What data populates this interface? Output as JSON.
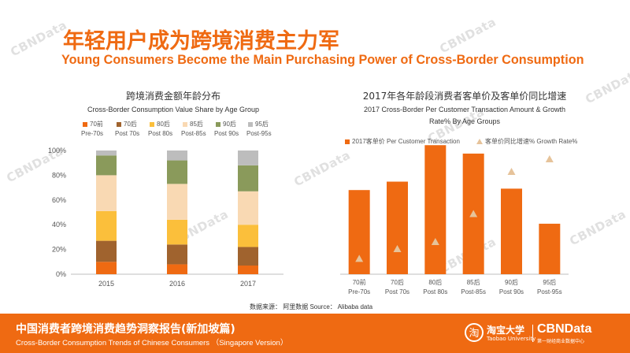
{
  "header": {
    "title_cn": "年轻用户成为跨境消费主力军",
    "title_en": "Young Consumers Become the Main Purchasing Power of Cross-Border Consumption"
  },
  "watermark": "CBNData",
  "source": "数据来源： 阿里数据  Source： Alibaba data",
  "footer": {
    "title_cn": "中国消费者跨境消费趋势洞察报告(新加坡篇)",
    "title_en": "Cross-Border Consumption Trends of Chinese Consumers （Singapore Version）",
    "logo_taobao": "淘宝大学",
    "logo_taobao_en": "Taobao University",
    "logo_cbn": "CBNData",
    "logo_cbn_sub": "第一财经商业数据中心"
  },
  "chart_data": [
    {
      "type": "bar",
      "stacked": true,
      "title": "跨境消费金额年龄分布",
      "subtitle": "Cross-Border Consumption Value Share by Age Group",
      "categories": [
        "2015",
        "2016",
        "2017"
      ],
      "yticks": [
        "0%",
        "20%",
        "40%",
        "60%",
        "80%",
        "100%"
      ],
      "ylim": [
        0,
        100
      ],
      "series": [
        {
          "name": "70前",
          "name_en": "Pre-70s",
          "color": "#ef6a12",
          "values": [
            10,
            8,
            7
          ]
        },
        {
          "name": "70后",
          "name_en": "Post 70s",
          "color": "#a0632e",
          "values": [
            17,
            16,
            15
          ]
        },
        {
          "name": "80后",
          "name_en": "Post 80s",
          "color": "#fbbf3b",
          "values": [
            24,
            20,
            18
          ]
        },
        {
          "name": "85后",
          "name_en": "Post-85s",
          "color": "#f9d9b3",
          "values": [
            29,
            29,
            27
          ]
        },
        {
          "name": "90后",
          "name_en": "Post 90s",
          "color": "#8a9a5b",
          "values": [
            16,
            19,
            21
          ]
        },
        {
          "name": "95后",
          "name_en": "Post-95s",
          "color": "#bdbdbd",
          "values": [
            4,
            8,
            12
          ]
        }
      ],
      "legend": "top"
    },
    {
      "type": "bar",
      "title": "2017年各年龄段消费者客单价及客单价同比增速",
      "subtitle": "2017 Cross-Border Per Customer Transaction Amount & Growth Rate% By Age Groups",
      "categories": [
        {
          "cn": "70前",
          "en": "Pre-70s"
        },
        {
          "cn": "70后",
          "en": "Post 70s"
        },
        {
          "cn": "80后",
          "en": "Post 80s"
        },
        {
          "cn": "85后",
          "en": "Post-85s"
        },
        {
          "cn": "90后",
          "en": "Post 90s"
        },
        {
          "cn": "95后",
          "en": "Post-95s"
        }
      ],
      "series": [
        {
          "name": "2017客单价 Per Customer Transaction",
          "color": "#ef6a12",
          "marker": "bar",
          "values": [
            60,
            66,
            92,
            86,
            61,
            36
          ]
        },
        {
          "name": "客单价同比增速% Growth Rate%",
          "color": "#e6c39a",
          "marker": "triangle",
          "values": [
            11,
            18,
            23,
            43,
            73,
            82
          ]
        }
      ],
      "ylim": [
        0,
        100
      ],
      "legend": "top"
    }
  ]
}
